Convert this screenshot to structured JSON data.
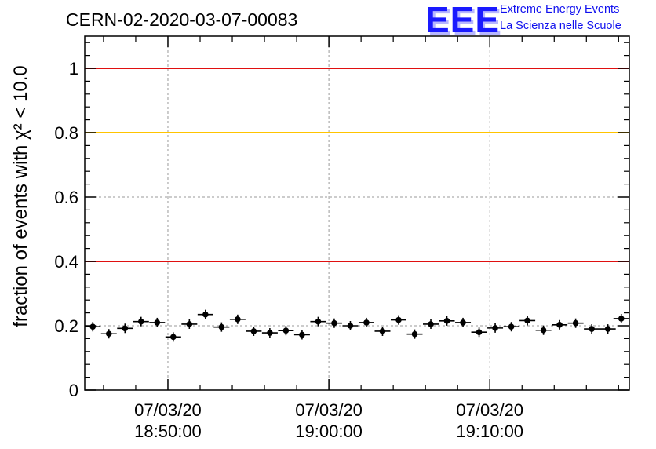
{
  "header": {
    "run_title": "CERN-02-2020-03-07-00083",
    "logo_mark": "EEE",
    "logo_line1": "Extreme Energy Events",
    "logo_line2": "La Scienza nelle Scuole"
  },
  "colors": {
    "threshold_red": "#e01010",
    "threshold_yellow": "#ffc400",
    "points": "#000000",
    "grid": "#9a9a9a"
  },
  "chart_data": {
    "type": "scatter",
    "title": "CERN-02-2020-03-07-00083",
    "ylabel": "fraction of events with χ² < 10.0",
    "xlabel": "",
    "ylim": [
      0,
      1.1
    ],
    "xlim": [
      "2020-03-07 18:44:50",
      "2020-03-07 19:18:40"
    ],
    "x_ticks": [
      {
        "date": "07/03/20",
        "time": "18:50:00",
        "at": "2020-03-07 18:50:00"
      },
      {
        "date": "07/03/20",
        "time": "19:00:00",
        "at": "2020-03-07 19:00:00"
      },
      {
        "date": "07/03/20",
        "time": "19:10:00",
        "at": "2020-03-07 19:10:00"
      }
    ],
    "y_ticks": [
      "0",
      "0.2",
      "0.4",
      "0.6",
      "0.8",
      "1"
    ],
    "y_tick_values": [
      0,
      0.2,
      0.4,
      0.6,
      0.8,
      1
    ],
    "grid": true,
    "threshold_lines": [
      {
        "value": 1.0,
        "color": "red"
      },
      {
        "value": 0.8,
        "color": "yellow"
      },
      {
        "value": 0.4,
        "color": "red"
      }
    ],
    "points": [
      {
        "x": "2020-03-07 18:45:20",
        "y": 0.197
      },
      {
        "x": "2020-03-07 18:46:20",
        "y": 0.175
      },
      {
        "x": "2020-03-07 18:47:20",
        "y": 0.192
      },
      {
        "x": "2020-03-07 18:48:20",
        "y": 0.213
      },
      {
        "x": "2020-03-07 18:49:20",
        "y": 0.21
      },
      {
        "x": "2020-03-07 18:50:20",
        "y": 0.165
      },
      {
        "x": "2020-03-07 18:51:20",
        "y": 0.205
      },
      {
        "x": "2020-03-07 18:52:20",
        "y": 0.235
      },
      {
        "x": "2020-03-07 18:53:20",
        "y": 0.196
      },
      {
        "x": "2020-03-07 18:54:20",
        "y": 0.22
      },
      {
        "x": "2020-03-07 18:55:20",
        "y": 0.183
      },
      {
        "x": "2020-03-07 18:56:20",
        "y": 0.178
      },
      {
        "x": "2020-03-07 18:57:20",
        "y": 0.185
      },
      {
        "x": "2020-03-07 18:58:20",
        "y": 0.172
      },
      {
        "x": "2020-03-07 18:59:20",
        "y": 0.213
      },
      {
        "x": "2020-03-07 19:00:20",
        "y": 0.208
      },
      {
        "x": "2020-03-07 19:01:20",
        "y": 0.2
      },
      {
        "x": "2020-03-07 19:02:20",
        "y": 0.21
      },
      {
        "x": "2020-03-07 19:03:20",
        "y": 0.183
      },
      {
        "x": "2020-03-07 19:04:20",
        "y": 0.218
      },
      {
        "x": "2020-03-07 19:05:20",
        "y": 0.174
      },
      {
        "x": "2020-03-07 19:06:20",
        "y": 0.205
      },
      {
        "x": "2020-03-07 19:07:20",
        "y": 0.215
      },
      {
        "x": "2020-03-07 19:08:20",
        "y": 0.21
      },
      {
        "x": "2020-03-07 19:09:20",
        "y": 0.18
      },
      {
        "x": "2020-03-07 19:10:20",
        "y": 0.193
      },
      {
        "x": "2020-03-07 19:11:20",
        "y": 0.197
      },
      {
        "x": "2020-03-07 19:12:20",
        "y": 0.216
      },
      {
        "x": "2020-03-07 19:13:20",
        "y": 0.186
      },
      {
        "x": "2020-03-07 19:14:20",
        "y": 0.203
      },
      {
        "x": "2020-03-07 19:15:20",
        "y": 0.208
      },
      {
        "x": "2020-03-07 19:16:20",
        "y": 0.19
      },
      {
        "x": "2020-03-07 19:17:20",
        "y": 0.19
      },
      {
        "x": "2020-03-07 19:18:10",
        "y": 0.222
      }
    ]
  }
}
